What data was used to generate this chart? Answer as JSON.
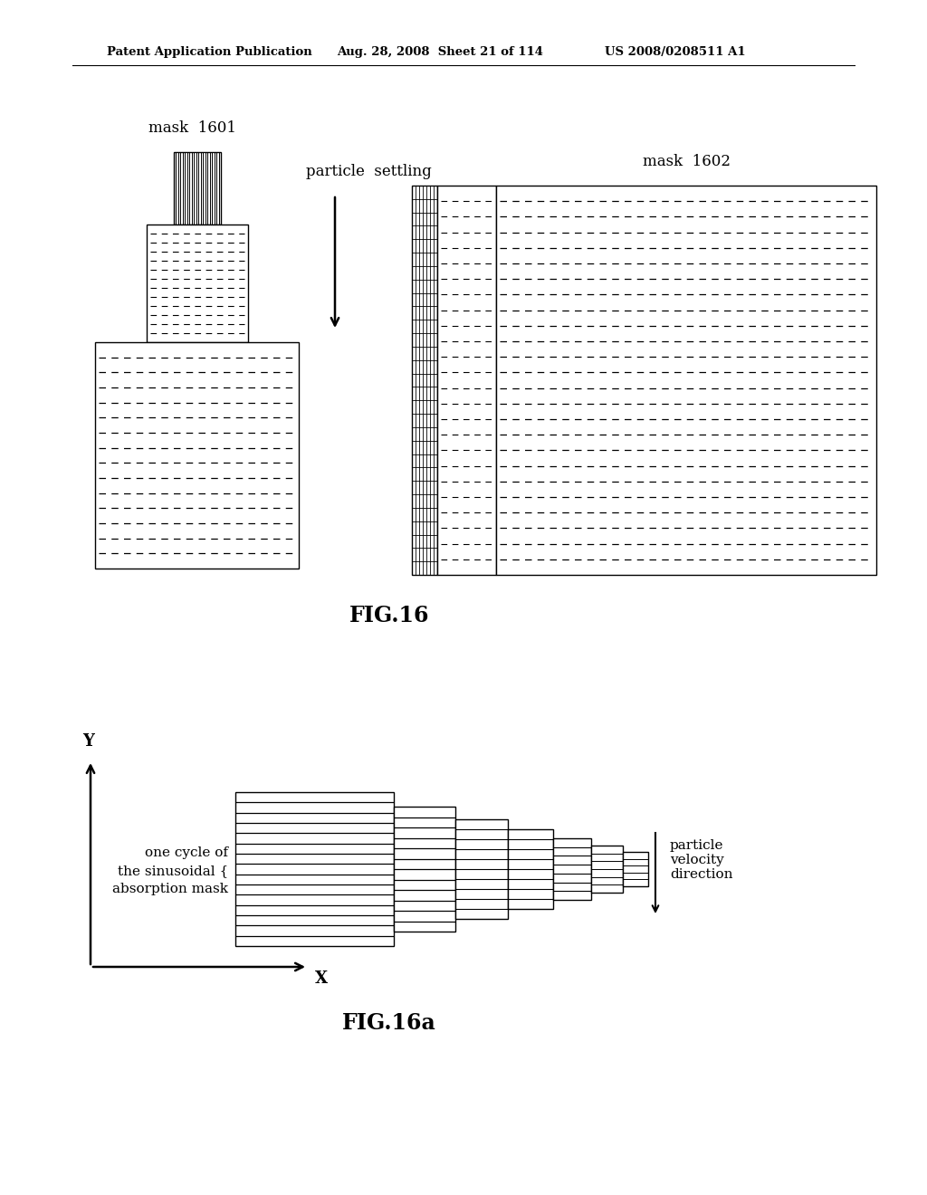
{
  "bg_color": "#ffffff",
  "header_text": "Patent Application Publication",
  "header_date": "Aug. 28, 2008  Sheet 21 of 114",
  "header_patent": "US 2008/0208511 A1",
  "fig16_caption": "FIG.16",
  "fig16a_caption": "FIG.16a",
  "mask1601_label": "mask  1601",
  "mask1602_label": "mask  1602",
  "particle_settling_label": "particle  settling"
}
